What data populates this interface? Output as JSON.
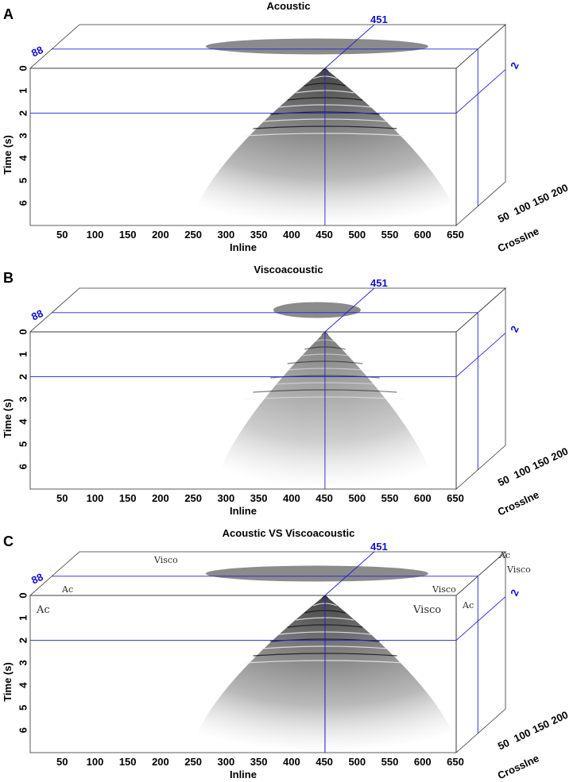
{
  "panels": [
    {
      "letter": "A",
      "title": "Acoustic",
      "variant": "acoustic",
      "inline_slice": "451",
      "crossline_slice": "88",
      "time_slice": "2",
      "region_labels": []
    },
    {
      "letter": "B",
      "title": "Viscoacoustic",
      "variant": "visco",
      "inline_slice": "451",
      "crossline_slice": "88",
      "time_slice": "2",
      "region_labels": []
    },
    {
      "letter": "C",
      "title": "Acoustic VS Viscoacoustic",
      "variant": "compare",
      "inline_slice": "451",
      "crossline_slice": "88",
      "time_slice": "2",
      "region_labels": [
        "Ac",
        "Visco"
      ]
    }
  ],
  "chart_data": {
    "type": "heatmap",
    "description_kind": "3D seismic cube (inline x crossline x time)",
    "x_axis": {
      "label": "Inline",
      "ticks": [
        "50",
        "100",
        "150",
        "200",
        "250",
        "300",
        "350",
        "400",
        "450",
        "500",
        "550",
        "600",
        "650"
      ],
      "range": [
        0,
        650
      ]
    },
    "y_axis": {
      "label": "Time (s)",
      "ticks": [
        "0",
        "1",
        "2",
        "3",
        "4",
        "5",
        "6"
      ],
      "range": [
        0,
        7
      ]
    },
    "z_axis": {
      "label": "Crosslne",
      "ticks": [
        "50",
        "100",
        "150",
        "200"
      ],
      "range": [
        0,
        200
      ]
    },
    "slices": {
      "inline": 451,
      "crossline": 88,
      "time_s": 2
    },
    "colormap": "gray (black/white seismic amplitude)"
  }
}
